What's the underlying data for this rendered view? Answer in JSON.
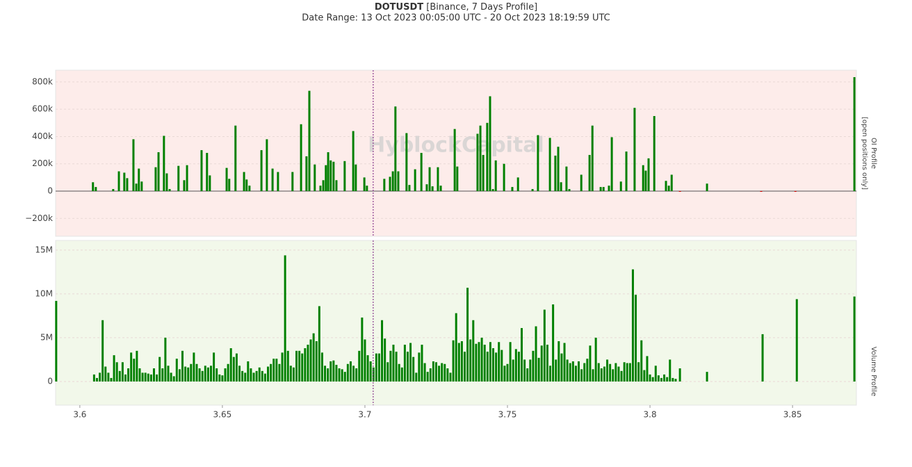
{
  "chart_data": [
    {
      "type": "bar",
      "title": "DOTUSDT",
      "title_note": "[Binance, 7 Days Profile]",
      "subtitle": "Date Range: 13 Oct 2023 00:05:00 UTC - 20 Oct 2023 18:19:59 UTC",
      "watermark": "HyblockCapital",
      "side_label": "OI Profile",
      "side_note": "[open positions only]",
      "background": "#fdecea",
      "color": "#008000",
      "negative_color": "#e00000",
      "grid": true,
      "zeroline": true,
      "marker_x": 3.7029,
      "marker_color": "#8a3a8f",
      "xlim": [
        3.5915,
        3.8724
      ],
      "ylim": [
        -331000,
        886000
      ],
      "yticks": [
        {
          "value": -200000,
          "label": "−200k"
        },
        0,
        {
          "value": 200000,
          "label": "200k"
        },
        {
          "value": 400000,
          "label": "400k"
        },
        {
          "value": 600000,
          "label": "600k"
        },
        {
          "value": 800000,
          "label": "800k"
        }
      ],
      "x": [
        3.6046,
        3.6056,
        3.6117,
        3.6137,
        3.6156,
        3.6166,
        3.6188,
        3.6198,
        3.6207,
        3.6217,
        3.6266,
        3.6276,
        3.6295,
        3.6305,
        3.6315,
        3.6346,
        3.6366,
        3.6376,
        3.6427,
        3.6446,
        3.6456,
        3.6515,
        3.6524,
        3.6546,
        3.6576,
        3.6585,
        3.6595,
        3.6637,
        3.6656,
        3.6676,
        3.6695,
        3.6746,
        3.6776,
        3.6795,
        3.6805,
        3.6824,
        3.6844,
        3.6854,
        3.6863,
        3.6871,
        3.688,
        3.689,
        3.69,
        3.6929,
        3.6959,
        3.6968,
        3.6998,
        3.7007,
        3.7068,
        3.7088,
        3.7098,
        3.7107,
        3.7117,
        3.7146,
        3.7156,
        3.7176,
        3.7198,
        3.7217,
        3.7227,
        3.7237,
        3.7256,
        3.7266,
        3.7315,
        3.7324,
        3.7395,
        3.7405,
        3.7415,
        3.7429,
        3.7439,
        3.7449,
        3.7459,
        3.7488,
        3.7517,
        3.7537,
        3.7588,
        3.7607,
        3.7649,
        3.7668,
        3.7678,
        3.7688,
        3.7707,
        3.7717,
        3.7759,
        3.7788,
        3.7798,
        3.7827,
        3.7837,
        3.7856,
        3.7866,
        3.7898,
        3.7917,
        3.7946,
        3.7976,
        3.7985,
        3.7995,
        3.8015,
        3.8056,
        3.8066,
        3.8076,
        3.8105,
        3.82,
        3.839,
        3.851,
        3.8717
      ],
      "values": [
        65000,
        30000,
        15000,
        145000,
        135000,
        95000,
        380000,
        55000,
        165000,
        70000,
        175000,
        285000,
        405000,
        130000,
        15000,
        185000,
        80000,
        190000,
        300000,
        280000,
        115000,
        170000,
        90000,
        480000,
        140000,
        85000,
        40000,
        300000,
        380000,
        165000,
        140000,
        140000,
        490000,
        255000,
        735000,
        195000,
        40000,
        80000,
        190000,
        285000,
        225000,
        215000,
        80000,
        220000,
        440000,
        195000,
        100000,
        40000,
        90000,
        105000,
        145000,
        620000,
        145000,
        425000,
        45000,
        160000,
        280000,
        50000,
        175000,
        35000,
        175000,
        40000,
        455000,
        180000,
        420000,
        480000,
        265000,
        500000,
        695000,
        15000,
        225000,
        200000,
        30000,
        100000,
        15000,
        410000,
        390000,
        260000,
        325000,
        65000,
        180000,
        15000,
        120000,
        265000,
        480000,
        30000,
        30000,
        40000,
        395000,
        70000,
        290000,
        610000,
        190000,
        150000,
        240000,
        550000,
        75000,
        40000,
        120000,
        -5000,
        55000,
        -5000,
        -5000,
        835000
      ]
    },
    {
      "type": "bar",
      "side_label": "Volume Profile",
      "background": "#f2f8ea",
      "color": "#008000",
      "negative_color": "#e00000",
      "grid": true,
      "zeroline": false,
      "marker_x": 3.7029,
      "marker_color": "#8a3a8f",
      "xlim": [
        3.5915,
        3.8724
      ],
      "xticks": [
        3.6,
        3.65,
        3.7,
        3.75,
        3.8,
        3.85
      ],
      "ylim": [
        -2700000,
        16100000
      ],
      "yticks": [
        0,
        {
          "value": 5000000,
          "label": "5M"
        },
        {
          "value": 10000000,
          "label": "10M"
        },
        {
          "value": 15000000,
          "label": "15M"
        }
      ],
      "x": [
        3.5917,
        3.605,
        3.606,
        3.607,
        3.608,
        3.609,
        3.61,
        3.611,
        3.612,
        3.613,
        3.614,
        3.615,
        3.616,
        3.617,
        3.618,
        3.619,
        3.62,
        3.621,
        3.622,
        3.623,
        3.624,
        3.625,
        3.626,
        3.627,
        3.628,
        3.629,
        3.63,
        3.631,
        3.632,
        3.633,
        3.634,
        3.635,
        3.636,
        3.637,
        3.638,
        3.639,
        3.64,
        3.641,
        3.642,
        3.643,
        3.644,
        3.645,
        3.646,
        3.647,
        3.648,
        3.649,
        3.65,
        3.651,
        3.652,
        3.653,
        3.654,
        3.655,
        3.656,
        3.657,
        3.658,
        3.659,
        3.66,
        3.661,
        3.662,
        3.663,
        3.664,
        3.665,
        3.666,
        3.667,
        3.668,
        3.669,
        3.67,
        3.671,
        3.672,
        3.673,
        3.674,
        3.675,
        3.676,
        3.677,
        3.678,
        3.679,
        3.68,
        3.681,
        3.682,
        3.683,
        3.684,
        3.685,
        3.686,
        3.687,
        3.688,
        3.689,
        3.69,
        3.691,
        3.692,
        3.693,
        3.694,
        3.695,
        3.696,
        3.697,
        3.698,
        3.699,
        3.7,
        3.701,
        3.702,
        3.703,
        3.704,
        3.705,
        3.706,
        3.707,
        3.708,
        3.709,
        3.71,
        3.711,
        3.712,
        3.713,
        3.714,
        3.715,
        3.716,
        3.717,
        3.718,
        3.719,
        3.72,
        3.721,
        3.722,
        3.723,
        3.724,
        3.725,
        3.726,
        3.727,
        3.728,
        3.729,
        3.73,
        3.731,
        3.732,
        3.733,
        3.734,
        3.735,
        3.736,
        3.737,
        3.738,
        3.739,
        3.74,
        3.741,
        3.742,
        3.743,
        3.744,
        3.745,
        3.746,
        3.747,
        3.748,
        3.749,
        3.75,
        3.751,
        3.752,
        3.753,
        3.754,
        3.755,
        3.756,
        3.757,
        3.758,
        3.759,
        3.76,
        3.761,
        3.762,
        3.763,
        3.764,
        3.765,
        3.766,
        3.767,
        3.768,
        3.769,
        3.77,
        3.771,
        3.772,
        3.773,
        3.774,
        3.775,
        3.776,
        3.777,
        3.778,
        3.779,
        3.78,
        3.781,
        3.782,
        3.783,
        3.784,
        3.785,
        3.786,
        3.787,
        3.788,
        3.789,
        3.79,
        3.791,
        3.792,
        3.793,
        3.794,
        3.795,
        3.796,
        3.797,
        3.798,
        3.799,
        3.8,
        3.801,
        3.802,
        3.803,
        3.804,
        3.805,
        3.806,
        3.807,
        3.808,
        3.809,
        3.8105,
        3.82,
        3.8395,
        3.8515,
        3.8717
      ],
      "values": [
        9200000.0,
        800000.0,
        400000.0,
        1000000.0,
        7000000.0,
        1700000.0,
        1000000.0,
        400000.0,
        3000000.0,
        2200000.0,
        1200000.0,
        2200000.0,
        800000.0,
        1500000.0,
        3300000.0,
        2600000.0,
        3500000.0,
        1500000.0,
        1000000.0,
        1000000.0,
        900000.0,
        800000.0,
        1500000.0,
        800000.0,
        2800000.0,
        1500000.0,
        5000000.0,
        1800000.0,
        1000000.0,
        600000.0,
        2600000.0,
        1400000.0,
        3500000.0,
        1700000.0,
        1600000.0,
        2000000.0,
        3300000.0,
        2000000.0,
        1500000.0,
        1200000.0,
        1800000.0,
        1600000.0,
        1800000.0,
        3300000.0,
        1500000.0,
        800000.0,
        700000.0,
        1500000.0,
        2000000.0,
        3800000.0,
        2800000.0,
        3200000.0,
        1800000.0,
        1200000.0,
        1000000.0,
        2300000.0,
        1500000.0,
        1000000.0,
        1200000.0,
        1600000.0,
        1200000.0,
        900000.0,
        1700000.0,
        2000000.0,
        2600000.0,
        2600000.0,
        2000000.0,
        3300000.0,
        14400000.0,
        3500000.0,
        1800000.0,
        1600000.0,
        3500000.0,
        3500000.0,
        3200000.0,
        3800000.0,
        4200000.0,
        4800000.0,
        5500000.0,
        4600000.0,
        8600000.0,
        3300000.0,
        1800000.0,
        1500000.0,
        2300000.0,
        2400000.0,
        1900000.0,
        1500000.0,
        1400000.0,
        1100000.0,
        2000000.0,
        2300000.0,
        1800000.0,
        1500000.0,
        3500000.0,
        7300000.0,
        4800000.0,
        3000000.0,
        2300000.0,
        1600000.0,
        3200000.0,
        3200000.0,
        7000000.0,
        4900000.0,
        2200000.0,
        3500000.0,
        4200000.0,
        3400000.0,
        2000000.0,
        1600000.0,
        4200000.0,
        3400000.0,
        4400000.0,
        2800000.0,
        1000000.0,
        3300000.0,
        4200000.0,
        2100000.0,
        1100000.0,
        1500000.0,
        2300000.0,
        2200000.0,
        1800000.0,
        2100000.0,
        2000000.0,
        1500000.0,
        1000000.0,
        4700000.0,
        7800000.0,
        4400000.0,
        4600000.0,
        3400000.0,
        10700000.0,
        4800000.0,
        7000000.0,
        4300000.0,
        4500000.0,
        5000000.0,
        4200000.0,
        3400000.0,
        4500000.0,
        3800000.0,
        3300000.0,
        4500000.0,
        3600000.0,
        1800000.0,
        2000000.0,
        4500000.0,
        2500000.0,
        3700000.0,
        3400000.0,
        6100000.0,
        2500000.0,
        1500000.0,
        2500000.0,
        3500000.0,
        6300000.0,
        2700000.0,
        4100000.0,
        8200000.0,
        4200000.0,
        1800000.0,
        8800000.0,
        2500000.0,
        4600000.0,
        3200000.0,
        4400000.0,
        2500000.0,
        2100000.0,
        2300000.0,
        1800000.0,
        2300000.0,
        1400000.0,
        2100000.0,
        2600000.0,
        4100000.0,
        1400000.0,
        5000000.0,
        2100000.0,
        1500000.0,
        1700000.0,
        2500000.0,
        2000000.0,
        1400000.0,
        2100000.0,
        1700000.0,
        1200000.0,
        2200000.0,
        2100000.0,
        2100000.0,
        12800000.0,
        9900000.0,
        2200000.0,
        4700000.0,
        1300000.0,
        2900000.0,
        800000.0,
        500000.0,
        1800000.0,
        700000.0,
        400000.0,
        800000.0,
        500000.0,
        2500000.0,
        400000.0,
        300000.0,
        1500000.0,
        1100000.0,
        5400000.0,
        9400000.0,
        9700000.0
      ]
    }
  ]
}
